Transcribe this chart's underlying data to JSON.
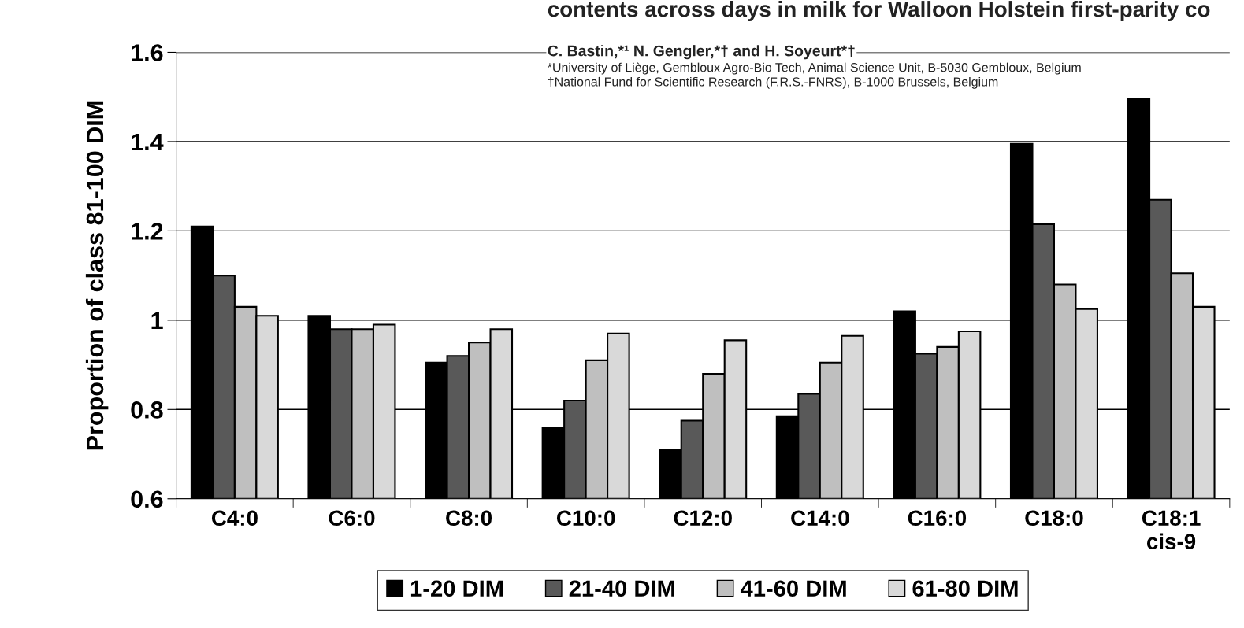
{
  "chart_data": {
    "type": "bar",
    "ylabel": "Proportion of class 81-100 DIM",
    "categories": [
      "C4:0",
      "C6:0",
      "C8:0",
      "C10:0",
      "C12:0",
      "C14:0",
      "C16:0",
      "C18:0",
      "C18:1\ncis-9"
    ],
    "series": [
      {
        "name": "1-20 DIM",
        "color": "#000000",
        "values": [
          1.21,
          1.01,
          0.905,
          0.76,
          0.71,
          0.785,
          1.02,
          1.395,
          1.495
        ]
      },
      {
        "name": "21-40 DIM",
        "color": "#595959",
        "values": [
          1.1,
          0.98,
          0.92,
          0.82,
          0.775,
          0.835,
          0.925,
          1.215,
          1.27
        ]
      },
      {
        "name": "41-60 DIM",
        "color": "#bfbfbf",
        "values": [
          1.03,
          0.98,
          0.95,
          0.91,
          0.88,
          0.905,
          0.94,
          1.08,
          1.105
        ]
      },
      {
        "name": "61-80 DIM",
        "color": "#d9d9d9",
        "values": [
          1.01,
          0.99,
          0.98,
          0.97,
          0.955,
          0.965,
          0.975,
          1.025,
          1.03
        ]
      }
    ],
    "ylim": [
      0.6,
      1.6
    ],
    "yticks": [
      0.6,
      0.8,
      1,
      1.2,
      1.4,
      1.6
    ],
    "grid": "y",
    "legend": "bottom",
    "annotations": [
      "contents across days in milk for Walloon Holstein first-parity co",
      "C. Bastin,*¹ N. Gengler,*† and H. Soyeurt*†",
      "*University of Liège, Gembloux Agro-Bio Tech, Animal Science Unit, B-5030 Gembloux, Belgium",
      "†National Fund for Scientific Research (F.R.S.-FNRS), B-1000 Brussels, Belgium"
    ]
  }
}
